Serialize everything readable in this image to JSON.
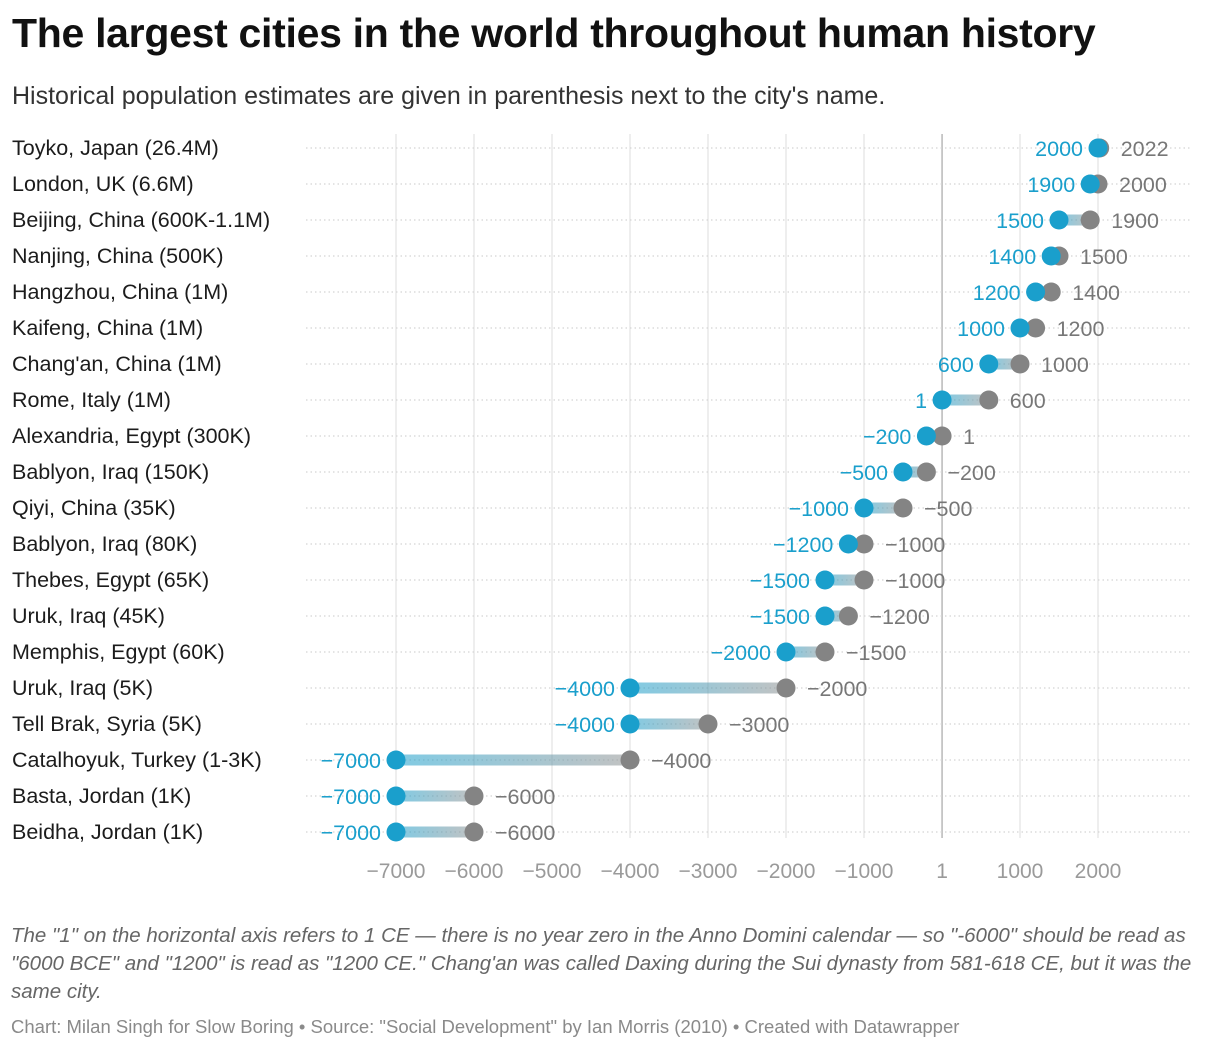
{
  "header": {
    "title": "The largest cities in the world throughout human history",
    "subtitle": "Historical population estimates are given in parenthesis next to the city's name."
  },
  "footer": {
    "note": "The \"1\" on the horizontal axis refers to 1 CE — there is no year zero in the Anno Domini calendar — so \"-6000\" should be read as \"6000 BCE\" and \"1200\" is read as \"1200 CE.\" Chang'an was called Daxing during the Sui dynasty from 581-618 CE, but it was the same city.",
    "credits": "Chart: Milan Singh for Slow Boring • Source: \"Social Development\" by Ian Morris (2010) • Created with Datawrapper"
  },
  "chart_data": {
    "type": "range-dot",
    "colors": {
      "start": "#1a9fcc",
      "end": "#848484",
      "start_label": "#1a9fcc",
      "end_label": "#777777",
      "bar": "#b3b3b3"
    },
    "xlim": [
      -7000,
      2100
    ],
    "xticks": [
      -7000,
      -6000,
      -5000,
      -4000,
      -3000,
      -2000,
      -1000,
      1,
      1000,
      2000
    ],
    "xtick_labels": [
      "−7000",
      "−6000",
      "−5000",
      "−4000",
      "−3000",
      "−2000",
      "−1000",
      "1",
      "1000",
      "2000"
    ],
    "grid": true,
    "rows": [
      {
        "city": "Toyko, Japan (26.4M)",
        "start": 2000,
        "end": 2022,
        "start_label": "2000",
        "end_label": "2022"
      },
      {
        "city": "London, UK (6.6M)",
        "start": 1900,
        "end": 2000,
        "start_label": "1900",
        "end_label": "2000"
      },
      {
        "city": "Beijing, China (600K-1.1M)",
        "start": 1500,
        "end": 1900,
        "start_label": "1500",
        "end_label": "1900"
      },
      {
        "city": "Nanjing, China (500K)",
        "start": 1400,
        "end": 1500,
        "start_label": "1400",
        "end_label": "1500"
      },
      {
        "city": "Hangzhou, China (1M)",
        "start": 1200,
        "end": 1400,
        "start_label": "1200",
        "end_label": "1400"
      },
      {
        "city": "Kaifeng, China (1M)",
        "start": 1000,
        "end": 1200,
        "start_label": "1000",
        "end_label": "1200"
      },
      {
        "city": "Chang'an, China (1M)",
        "start": 600,
        "end": 1000,
        "start_label": "600",
        "end_label": "1000"
      },
      {
        "city": "Rome, Italy (1M)",
        "start": 1,
        "end": 600,
        "start_label": "1",
        "end_label": "600"
      },
      {
        "city": "Alexandria, Egypt (300K)",
        "start": -200,
        "end": 1,
        "start_label": "−200",
        "end_label": "1"
      },
      {
        "city": "Bablyon, Iraq (150K)",
        "start": -500,
        "end": -200,
        "start_label": "−500",
        "end_label": "−200"
      },
      {
        "city": "Qiyi, China (35K)",
        "start": -1000,
        "end": -500,
        "start_label": "−1000",
        "end_label": "−500"
      },
      {
        "city": "Bablyon, Iraq (80K)",
        "start": -1200,
        "end": -1000,
        "start_label": "−1200",
        "end_label": "−1000"
      },
      {
        "city": "Thebes, Egypt (65K)",
        "start": -1500,
        "end": -1000,
        "start_label": "−1500",
        "end_label": "−1000"
      },
      {
        "city": "Uruk, Iraq (45K)",
        "start": -1500,
        "end": -1200,
        "start_label": "−1500",
        "end_label": "−1200"
      },
      {
        "city": "Memphis, Egypt (60K)",
        "start": -2000,
        "end": -1500,
        "start_label": "−2000",
        "end_label": "−1500"
      },
      {
        "city": "Uruk, Iraq (5K)",
        "start": -4000,
        "end": -2000,
        "start_label": "−4000",
        "end_label": "−2000"
      },
      {
        "city": "Tell Brak, Syria (5K)",
        "start": -4000,
        "end": -3000,
        "start_label": "−4000",
        "end_label": "−3000"
      },
      {
        "city": "Catalhoyuk, Turkey (1-3K)",
        "start": -7000,
        "end": -4000,
        "start_label": "−7000",
        "end_label": "−4000"
      },
      {
        "city": "Basta, Jordan (1K)",
        "start": -7000,
        "end": -6000,
        "start_label": "−7000",
        "end_label": "−6000"
      },
      {
        "city": "Beidha, Jordan (1K)",
        "start": -7000,
        "end": -6000,
        "start_label": "−7000",
        "end_label": "−6000"
      }
    ]
  }
}
